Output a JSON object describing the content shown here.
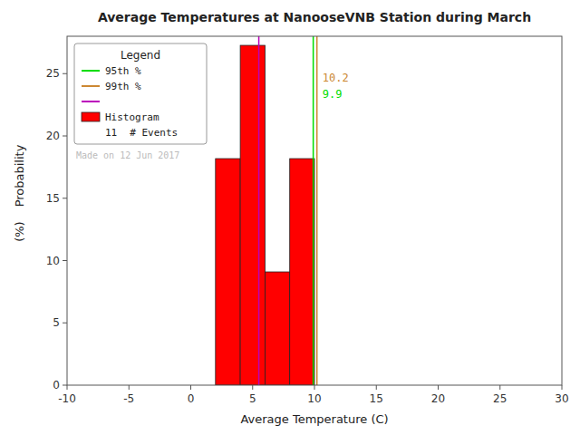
{
  "chart_data": {
    "type": "histogram",
    "title": "Average Temperatures at NanooseVNB Station during March",
    "x_label": "Average Temperature (C)",
    "y_label": [
      "Probability",
      "(%)"
    ],
    "xlim": [
      -10,
      30
    ],
    "ylim": [
      0,
      28
    ],
    "xticks": [
      -10,
      -5,
      0,
      5,
      10,
      15,
      20,
      25,
      30
    ],
    "yticks": [
      0,
      5,
      10,
      15,
      20,
      25
    ],
    "bins": [
      2,
      4,
      6,
      8,
      10
    ],
    "series": [
      {
        "name": "Histogram",
        "color": "#ff0000",
        "values": [
          18.18,
          27.27,
          9.09,
          18.18
        ]
      }
    ],
    "percentile_lines": [
      {
        "name": "95th %",
        "x": 9.9,
        "color": "#00dd00",
        "data_labels": true
      },
      {
        "name": "99th %",
        "x": 10.2,
        "color": "#cc8833",
        "data_labels": true
      },
      {
        "x": 5.5,
        "color": "#bb00bb"
      }
    ],
    "legend": "upper left",
    "legend_title": "Legend",
    "n_events": 11,
    "n_events_label": "# Events",
    "annotations": [
      {
        "text": "Made on 12 Jun 2017",
        "color": "#bbbbbb"
      }
    ],
    "grid": false
  }
}
